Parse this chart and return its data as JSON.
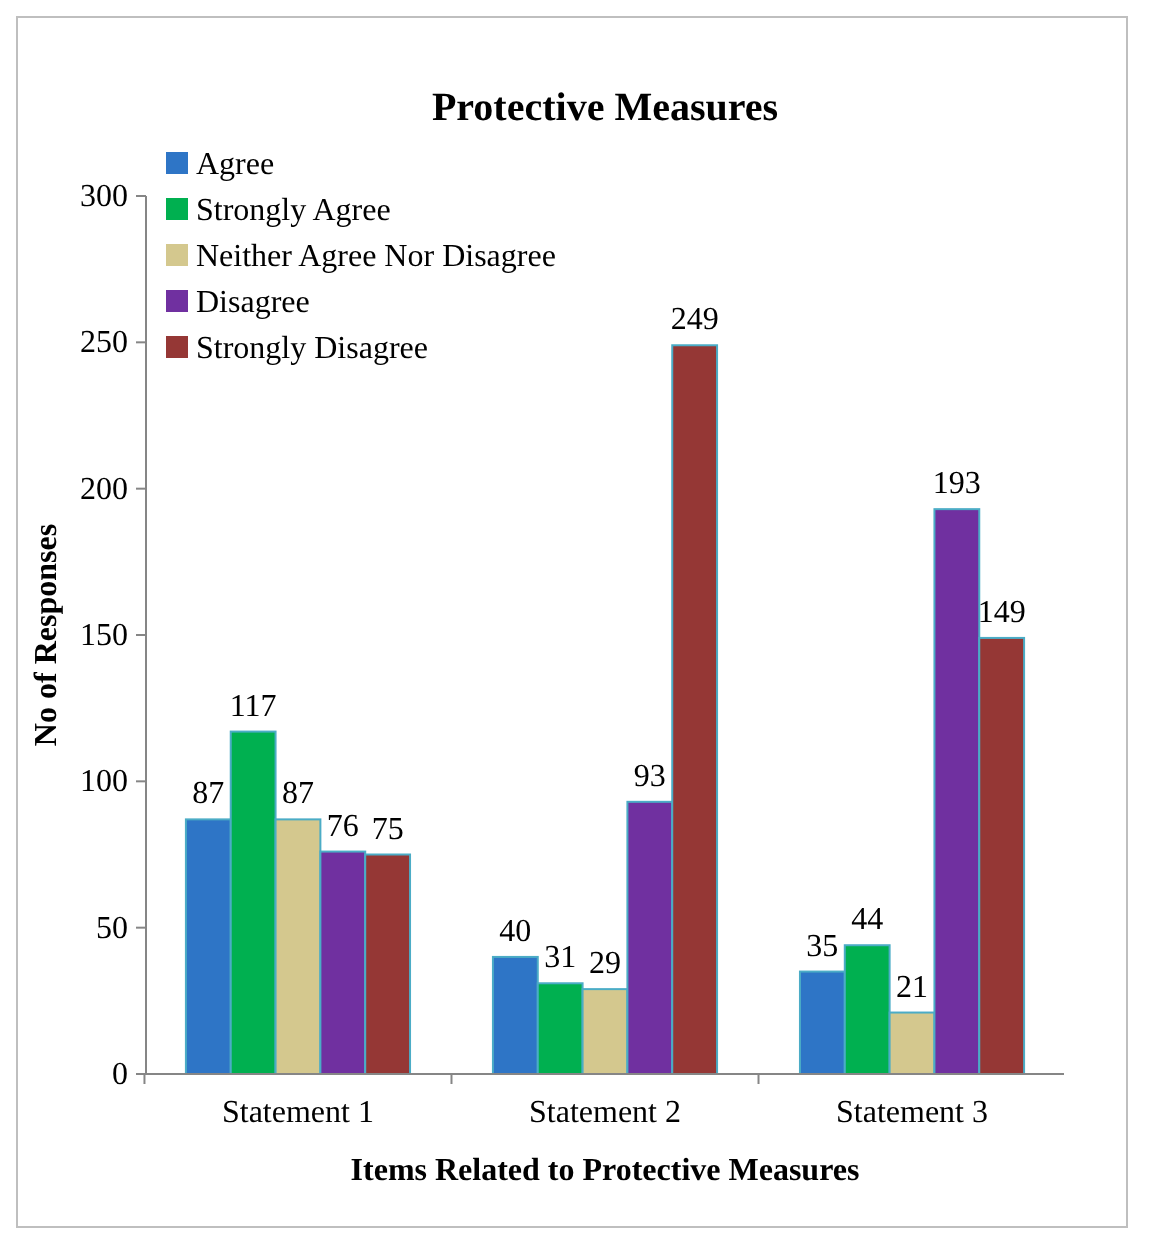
{
  "chart_data": {
    "type": "bar",
    "title": "Protective Measures",
    "xlabel": "Items Related to Protective Measures",
    "ylabel": "No of Responses",
    "categories": [
      "Statement 1",
      "Statement 2",
      "Statement 3"
    ],
    "series": [
      {
        "name": "Agree",
        "color": "#2e75c6",
        "values": [
          87,
          40,
          35
        ]
      },
      {
        "name": "Strongly Agree",
        "color": "#00b050",
        "values": [
          117,
          31,
          44
        ]
      },
      {
        "name": "Neither Agree Nor Disagree",
        "color": "#d4c88e",
        "values": [
          87,
          29,
          21
        ]
      },
      {
        "name": "Disagree",
        "color": "#7030a0",
        "values": [
          76,
          93,
          193
        ]
      },
      {
        "name": "Strongly Disagree",
        "color": "#953735",
        "values": [
          75,
          249,
          149
        ]
      }
    ],
    "ylim": [
      0,
      300
    ],
    "yticks": [
      0,
      50,
      100,
      150,
      200,
      250,
      300
    ],
    "data_labels": true,
    "legend": "top left",
    "grid": false
  }
}
